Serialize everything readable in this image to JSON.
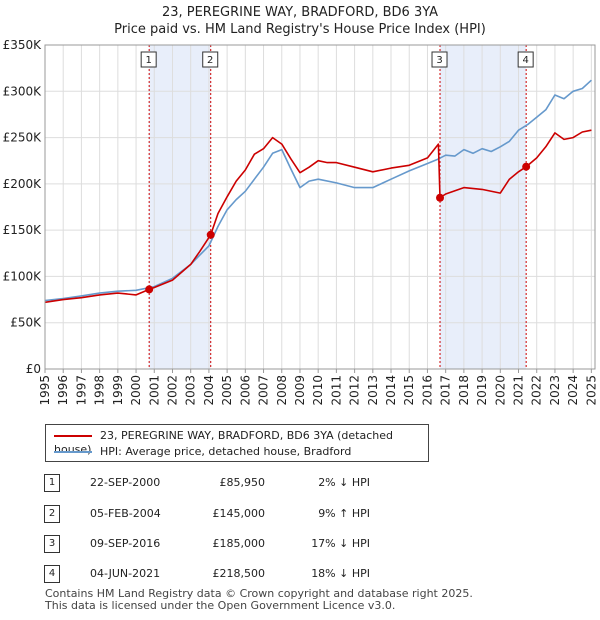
{
  "title_line1": "23, PEREGRINE WAY, BRADFORD, BD6 3YA",
  "title_line2": "Price paid vs. HM Land Registry's House Price Index (HPI)",
  "legend": {
    "property_label": "23, PEREGRINE WAY, BRADFORD, BD6 3YA (detached house)",
    "hpi_label": "HPI: Average price, detached house, Bradford"
  },
  "colors": {
    "property": "#cc0000",
    "hpi": "#6699cc",
    "shade": "#e8eefa"
  },
  "sales": [
    {
      "num": "1",
      "date": "22-SEP-2000",
      "price": "£85,950",
      "hpi": "2% ↓ HPI"
    },
    {
      "num": "2",
      "date": "05-FEB-2004",
      "price": "£145,000",
      "hpi": "9% ↑ HPI"
    },
    {
      "num": "3",
      "date": "09-SEP-2016",
      "price": "£185,000",
      "hpi": "17% ↓ HPI"
    },
    {
      "num": "4",
      "date": "04-JUN-2021",
      "price": "£218,500",
      "hpi": "18% ↓ HPI"
    }
  ],
  "footer_line1": "Contains HM Land Registry data © Crown copyright and database right 2025.",
  "footer_line2": "This data is licensed under the Open Government Licence v3.0.",
  "chart_data": {
    "type": "line",
    "title": "23, PEREGRINE WAY, BRADFORD, BD6 3YA — Price paid vs. HM Land Registry's House Price Index (HPI)",
    "xlabel": "",
    "ylabel": "",
    "xlim": [
      1995,
      2025.2
    ],
    "ylim": [
      0,
      350000
    ],
    "x_ticks": [
      1995,
      1996,
      1997,
      1998,
      1999,
      2000,
      2001,
      2002,
      2003,
      2004,
      2005,
      2006,
      2007,
      2008,
      2009,
      2010,
      2011,
      2012,
      2013,
      2014,
      2015,
      2016,
      2017,
      2018,
      2019,
      2020,
      2021,
      2022,
      2023,
      2024,
      2025
    ],
    "y_ticks": [
      0,
      50000,
      100000,
      150000,
      200000,
      250000,
      300000,
      350000
    ],
    "y_tick_labels": [
      "£0",
      "£50K",
      "£100K",
      "£150K",
      "£200K",
      "£250K",
      "£300K",
      "£350K"
    ],
    "grid": true,
    "shaded_spans": [
      [
        2000.72,
        2004.1
      ],
      [
        2016.69,
        2021.42
      ]
    ],
    "markers": [
      {
        "label": "1",
        "x": 2000.72
      },
      {
        "label": "2",
        "x": 2004.1
      },
      {
        "label": "3",
        "x": 2016.69
      },
      {
        "label": "4",
        "x": 2021.42
      }
    ],
    "sale_points": [
      {
        "x": 2000.72,
        "y": 85950
      },
      {
        "x": 2004.1,
        "y": 145000
      },
      {
        "x": 2016.69,
        "y": 185000
      },
      {
        "x": 2021.42,
        "y": 218500
      }
    ],
    "series": [
      {
        "name": "23, PEREGRINE WAY, BRADFORD, BD6 3YA (detached house)",
        "x": [
          1995,
          1996,
          1997,
          1998,
          1999,
          2000,
          2000.72,
          2001,
          2002,
          2003,
          2003.5,
          2004.1,
          2004.5,
          2005,
          2005.5,
          2006,
          2006.5,
          2007,
          2007.5,
          2008,
          2008.5,
          2009,
          2009.5,
          2010,
          2010.5,
          2011,
          2012,
          2013,
          2014,
          2015,
          2016,
          2016.6,
          2016.69,
          2017,
          2018,
          2019,
          2020,
          2020.5,
          2021,
          2021.42,
          2022,
          2022.5,
          2023,
          2023.5,
          2024,
          2024.5,
          2025
        ],
        "values": [
          72000,
          75000,
          77000,
          80000,
          82000,
          80000,
          85950,
          88000,
          96000,
          113000,
          127000,
          145000,
          168000,
          186000,
          203000,
          215000,
          232000,
          238000,
          250000,
          243000,
          227000,
          212000,
          218000,
          225000,
          223000,
          223000,
          218000,
          213000,
          217000,
          220000,
          228000,
          243000,
          185000,
          189000,
          196000,
          194000,
          190000,
          205000,
          213000,
          218500,
          228000,
          240000,
          255000,
          248000,
          250000,
          256000,
          258000
        ]
      },
      {
        "name": "HPI: Average price, detached house, Bradford",
        "x": [
          1995,
          1996,
          1997,
          1998,
          1999,
          2000,
          2001,
          2002,
          2003,
          2003.5,
          2004,
          2004.5,
          2005,
          2005.5,
          2006,
          2006.5,
          2007,
          2007.5,
          2008,
          2008.5,
          2009,
          2009.5,
          2010,
          2011,
          2012,
          2013,
          2014,
          2015,
          2016,
          2016.5,
          2017,
          2017.5,
          2018,
          2018.5,
          2019,
          2019.5,
          2020,
          2020.5,
          2021,
          2021.5,
          2022,
          2022.5,
          2023,
          2023.5,
          2024,
          2024.5,
          2025
        ],
        "values": [
          74000,
          76000,
          79000,
          82000,
          84000,
          85000,
          89000,
          98000,
          113000,
          123000,
          133000,
          154000,
          172000,
          183000,
          192000,
          205000,
          218000,
          233000,
          237000,
          216000,
          196000,
          203000,
          205000,
          201000,
          196000,
          196000,
          205000,
          214000,
          222000,
          226000,
          231000,
          230000,
          237000,
          233000,
          238000,
          235000,
          240000,
          246000,
          258000,
          264000,
          272000,
          280000,
          296000,
          292000,
          300000,
          303000,
          312000
        ]
      }
    ]
  }
}
